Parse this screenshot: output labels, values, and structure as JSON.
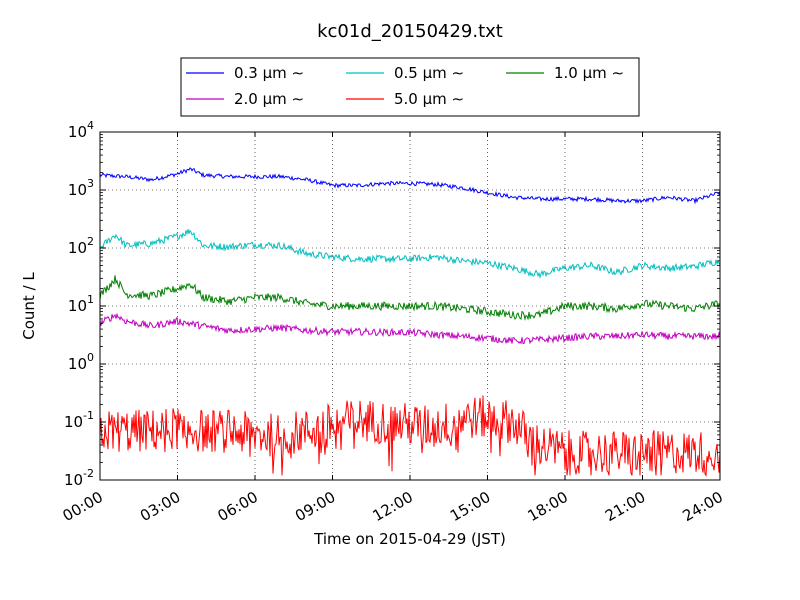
{
  "chart_data": {
    "type": "line",
    "title": "kc01d_20150429.txt",
    "xlabel": "Time on 2015-04-29 (JST)",
    "ylabel": "Count / L",
    "x_ticks": [
      "00:00",
      "03:00",
      "06:00",
      "09:00",
      "12:00",
      "15:00",
      "18:00",
      "21:00",
      "24:00"
    ],
    "x_range_hours": [
      0,
      24
    ],
    "y_scale": "log",
    "y_range": [
      0.01,
      10000
    ],
    "y_ticks": [
      {
        "base": "10",
        "exp": "-2"
      },
      {
        "base": "10",
        "exp": "-1"
      },
      {
        "base": "10",
        "exp": "0"
      },
      {
        "base": "10",
        "exp": "1"
      },
      {
        "base": "10",
        "exp": "2"
      },
      {
        "base": "10",
        "exp": "3"
      },
      {
        "base": "10",
        "exp": "4"
      }
    ],
    "grid": true,
    "legend_position": "top-center",
    "series": [
      {
        "name": "0.3 μm ∼",
        "color": "#0000ff",
        "hours": [
          0,
          1,
          2,
          3,
          3.5,
          4,
          5,
          6,
          7,
          8,
          9,
          10,
          11,
          12,
          13,
          14,
          15,
          16,
          17,
          18,
          19,
          20,
          21,
          22,
          23,
          24
        ],
        "values": [
          1800,
          1700,
          1500,
          1900,
          2300,
          1800,
          1700,
          1700,
          1700,
          1500,
          1200,
          1200,
          1300,
          1300,
          1250,
          1100,
          900,
          750,
          700,
          700,
          700,
          650,
          650,
          750,
          650,
          900
        ]
      },
      {
        "name": "0.5 μm ∼",
        "color": "#00bfbf",
        "hours": [
          0,
          0.6,
          1,
          2,
          3,
          3.5,
          4,
          5,
          6,
          7,
          8,
          9,
          10,
          11,
          12,
          13,
          14,
          15,
          16,
          17,
          18,
          19,
          20,
          21,
          22,
          23,
          24
        ],
        "values": [
          100,
          170,
          110,
          120,
          160,
          200,
          110,
          105,
          115,
          110,
          80,
          70,
          65,
          65,
          65,
          70,
          60,
          55,
          45,
          35,
          45,
          50,
          38,
          50,
          45,
          48,
          60
        ]
      },
      {
        "name": "1.0 μm ∼",
        "color": "#008000",
        "hours": [
          0,
          0.6,
          1,
          2,
          3,
          3.5,
          4,
          5,
          6,
          7,
          8,
          9,
          10,
          11,
          12,
          13,
          14,
          15,
          16,
          17,
          18,
          19,
          20,
          21,
          22,
          23,
          24
        ],
        "values": [
          15,
          30,
          16,
          15,
          20,
          24,
          14,
          12,
          14,
          14,
          11,
          10,
          10,
          10,
          10,
          10,
          9,
          8,
          7,
          7,
          10,
          10,
          9,
          11,
          10,
          9,
          11
        ]
      },
      {
        "name": "2.0 μm ∼",
        "color": "#bf00bf",
        "hours": [
          0,
          0.6,
          1,
          2,
          3,
          4,
          5,
          6,
          7,
          8,
          9,
          10,
          11,
          12,
          13,
          14,
          15,
          16,
          17,
          18,
          19,
          20,
          21,
          22,
          23,
          24
        ],
        "values": [
          5,
          7,
          5.5,
          4.5,
          5.5,
          4.5,
          3.8,
          4,
          4.2,
          3.8,
          3.6,
          3.6,
          3.5,
          3.5,
          3.2,
          3,
          2.8,
          2.5,
          2.6,
          2.8,
          3,
          3,
          3.2,
          3,
          3,
          3
        ]
      },
      {
        "name": "5.0 μm ∼",
        "color": "#ff0000",
        "hours": [
          0,
          2,
          3,
          4,
          5,
          6,
          7,
          8,
          9,
          10,
          11,
          12,
          13,
          14,
          15,
          16,
          16.5,
          17,
          18,
          19,
          20,
          21,
          22,
          23,
          24
        ],
        "values": [
          0.07,
          0.07,
          0.08,
          0.07,
          0.07,
          0.06,
          0.06,
          0.07,
          0.09,
          0.11,
          0.1,
          0.09,
          0.08,
          0.12,
          0.12,
          0.1,
          0.06,
          0.04,
          0.03,
          0.03,
          0.03,
          0.03,
          0.03,
          0.03,
          0.03
        ]
      }
    ]
  }
}
